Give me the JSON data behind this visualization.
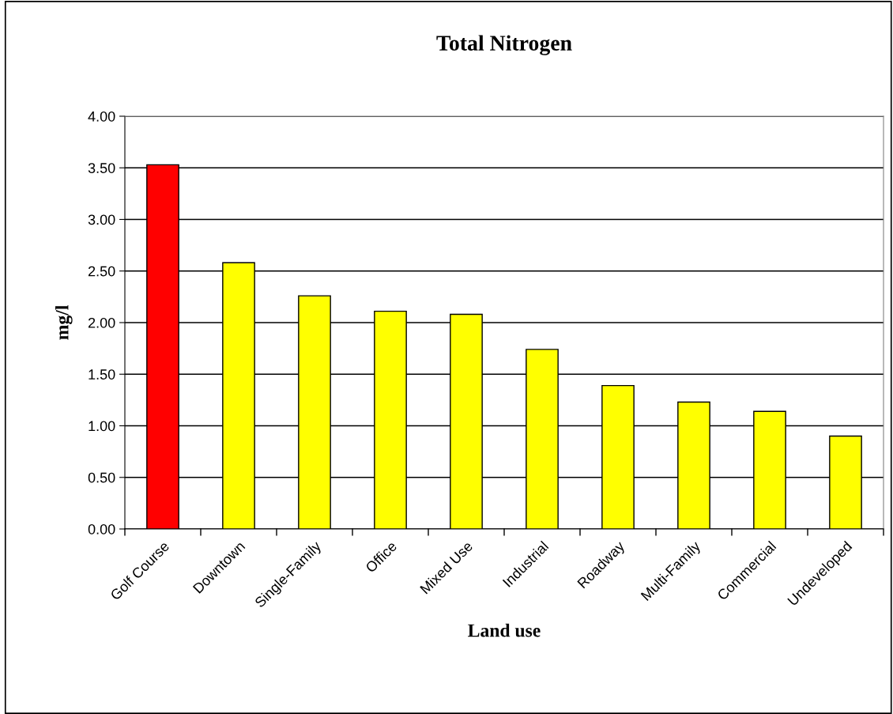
{
  "chart_data": {
    "type": "bar",
    "title": "Total Nitrogen",
    "xlabel": "Land use",
    "ylabel": "mg/l",
    "categories": [
      "Golf Course",
      "Downtown",
      "Single-Family",
      "Office",
      "Mixed Use",
      "Industrial",
      "Roadway",
      "Multi-Family",
      "Commercial",
      "Undeveloped"
    ],
    "values": [
      3.53,
      2.58,
      2.26,
      2.11,
      2.08,
      1.74,
      1.39,
      1.23,
      1.14,
      0.9
    ],
    "colors": [
      "#ff0000",
      "#ffff00",
      "#ffff00",
      "#ffff00",
      "#ffff00",
      "#ffff00",
      "#ffff00",
      "#ffff00",
      "#ffff00",
      "#ffff00"
    ],
    "ylim": [
      0,
      4
    ],
    "yticks": [
      {
        "value": 0,
        "label": "0.00"
      },
      {
        "value": 0.5,
        "label": "0.50"
      },
      {
        "value": 1,
        "label": "1.00"
      },
      {
        "value": 1.5,
        "label": "1.50"
      },
      {
        "value": 2,
        "label": "2.00"
      },
      {
        "value": 2.5,
        "label": "2.50"
      },
      {
        "value": 3,
        "label": "3.00"
      },
      {
        "value": 3.5,
        "label": "3.50"
      },
      {
        "value": 4,
        "label": "4.00"
      }
    ],
    "grid": "y",
    "legend": false
  }
}
